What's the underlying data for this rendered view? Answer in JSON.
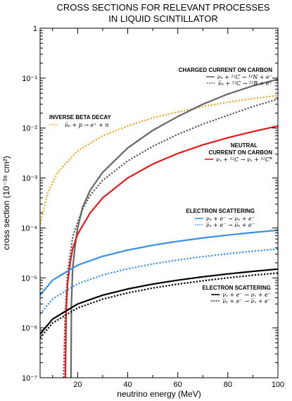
{
  "chart_data": {
    "type": "line",
    "title": [
      "CROSS SECTIONS FOR RELEVANT PROCESSES",
      "IN LIQUID SCINTILLATOR"
    ],
    "xlabel": "neutrino energy (MeV)",
    "ylabel": "cross section (10⁻³⁸ cm²)",
    "xlim": [
      5,
      100
    ],
    "ylim": [
      1e-07,
      1
    ],
    "yscale": "log",
    "xticks": [
      20,
      40,
      60,
      80,
      100
    ],
    "yticks": [
      {
        "v": 1e-07,
        "label": "10⁻⁷"
      },
      {
        "v": 1e-06,
        "label": "10⁻⁶"
      },
      {
        "v": 1e-05,
        "label": "10⁻⁵"
      },
      {
        "v": 0.0001,
        "label": "10⁻⁴"
      },
      {
        "v": 0.001,
        "label": "10⁻³"
      },
      {
        "v": 0.01,
        "label": "10⁻²"
      },
      {
        "v": 0.1,
        "label": "10⁻¹"
      },
      {
        "v": 1,
        "label": "1"
      }
    ],
    "series": [
      {
        "name": "ν̅ₑ + p → e⁺ + n",
        "color": "#e9a92c",
        "style": "dotted",
        "x": [
          5,
          8,
          12,
          20,
          30,
          40,
          50,
          60,
          70,
          80,
          90,
          100
        ],
        "y": [
          0.00012,
          0.0005,
          0.0013,
          0.0035,
          0.007,
          0.011,
          0.016,
          0.021,
          0.027,
          0.033,
          0.039,
          0.045
        ]
      },
      {
        "name": "νₑ + ¹²C → ¹²N + e⁻",
        "color": "#666666",
        "style": "solid",
        "x": [
          17.34,
          17.5,
          18,
          19,
          20,
          22,
          25,
          30,
          40,
          50,
          60,
          70,
          80,
          90,
          100
        ],
        "y": [
          1e-07,
          3e-06,
          1.5e-05,
          4.5e-05,
          0.0001,
          0.00026,
          0.00057,
          0.0013,
          0.004,
          0.009,
          0.017,
          0.03,
          0.048,
          0.07,
          0.095
        ]
      },
      {
        "name": "ν̅ₑ + ¹²C → ¹²B + e⁺",
        "color": "#555555",
        "style": "dotted",
        "x": [
          14.4,
          15,
          16,
          18,
          20,
          22,
          25,
          30,
          40,
          50,
          60,
          70,
          80,
          90,
          100
        ],
        "y": [
          1e-07,
          2e-06,
          1.3e-05,
          6.5e-05,
          0.00013,
          0.00024,
          0.00045,
          0.0009,
          0.0022,
          0.0043,
          0.0075,
          0.012,
          0.018,
          0.027,
          0.038
        ]
      },
      {
        "name": "νₓ + ¹²C → νₓ + ¹²C*",
        "color": "#dd1c1c",
        "style": "solid",
        "x": [
          15.11,
          15.4,
          16,
          17,
          18,
          20,
          25,
          30,
          40,
          50,
          60,
          70,
          80,
          90,
          100
        ],
        "y": [
          1e-07,
          2e-06,
          8e-06,
          2e-05,
          3.8e-05,
          7.5e-05,
          0.0002,
          0.0004,
          0.001,
          0.0019,
          0.0031,
          0.0046,
          0.0064,
          0.0085,
          0.011
        ]
      },
      {
        "name": "νₑ + e⁻ → νₑ + e⁻",
        "color": "#3a8fe0",
        "style": "solid",
        "x": [
          5,
          10,
          20,
          30,
          40,
          50,
          60,
          70,
          80,
          90,
          100
        ],
        "y": [
          4.5e-06,
          9e-06,
          1.8e-05,
          2.7e-05,
          3.6e-05,
          4.5e-05,
          5.4e-05,
          6.3e-05,
          7.2e-05,
          8.1e-05,
          9e-05
        ]
      },
      {
        "name": "ν̅ₑ + e⁻ → ν̅ₑ + e⁻",
        "color": "#3a8fe0",
        "style": "dotted",
        "x": [
          5,
          10,
          20,
          30,
          40,
          50,
          60,
          70,
          80,
          90,
          100
        ],
        "y": [
          1.9e-06,
          3.8e-06,
          7.6e-06,
          1.14e-05,
          1.52e-05,
          1.9e-05,
          2.28e-05,
          2.66e-05,
          3.04e-05,
          3.42e-05,
          3.8e-05
        ]
      },
      {
        "name": "νₓ + e⁻ → νₓ + e⁻",
        "color": "#000000",
        "style": "solid",
        "x": [
          5,
          10,
          20,
          30,
          40,
          50,
          60,
          70,
          80,
          90,
          100
        ],
        "y": [
          7.5e-07,
          1.5e-06,
          3e-06,
          4.5e-06,
          6e-06,
          7.5e-06,
          9e-06,
          1.05e-05,
          1.2e-05,
          1.35e-05,
          1.5e-05
        ]
      },
      {
        "name": "ν̅ₓ + e⁻ → ν̅ₓ + e⁻",
        "color": "#000000",
        "style": "dotted",
        "x": [
          5,
          10,
          20,
          30,
          40,
          50,
          60,
          70,
          80,
          90,
          100
        ],
        "y": [
          6.3e-07,
          1.25e-06,
          2.5e-06,
          3.75e-06,
          5e-06,
          6.25e-06,
          7.5e-06,
          8.75e-06,
          1e-05,
          1.13e-05,
          1.25e-05
        ]
      }
    ],
    "annotations": [
      {
        "id": "cc",
        "heading": [
          "CHARGED CURRENT ON CARBON"
        ],
        "series_idx": [
          1,
          2
        ]
      },
      {
        "id": "ibd",
        "heading": [
          "INVERSE BETA DECAY"
        ],
        "series_idx": [
          0
        ]
      },
      {
        "id": "nc",
        "heading": [
          "NEUTRAL",
          "CURRENT ON CARBON"
        ],
        "series_idx": [
          3
        ]
      },
      {
        "id": "es1",
        "heading": [
          "ELECTRON SCATTERING"
        ],
        "series_idx": [
          4,
          5
        ]
      },
      {
        "id": "es2",
        "heading": [
          "ELECTRON SCATTERING"
        ],
        "series_idx": [
          6,
          7
        ]
      }
    ],
    "grid": false,
    "legend": "inline annotations"
  }
}
